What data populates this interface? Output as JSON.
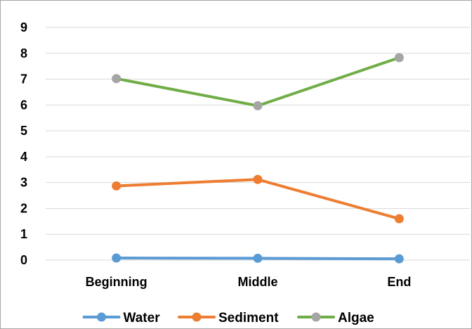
{
  "chart_data": {
    "type": "line",
    "title": "",
    "xlabel": "",
    "ylabel": "",
    "categories": [
      "Beginning",
      "Middle",
      "End"
    ],
    "ylim": [
      0,
      9
    ],
    "yticks": [
      0,
      1,
      2,
      3,
      4,
      5,
      6,
      7,
      8,
      9
    ],
    "grid": true,
    "legend_position": "bottom",
    "series": [
      {
        "name": "Water",
        "color": "#5b9bd5",
        "values": [
          0.08,
          0.07,
          0.05
        ]
      },
      {
        "name": "Sediment",
        "color": "#ed7d31",
        "values": [
          2.87,
          3.12,
          1.6
        ]
      },
      {
        "name": "Algae",
        "color": "#70ad47",
        "marker_color": "#a5a5a5",
        "values": [
          7.02,
          5.97,
          7.83
        ]
      }
    ]
  }
}
